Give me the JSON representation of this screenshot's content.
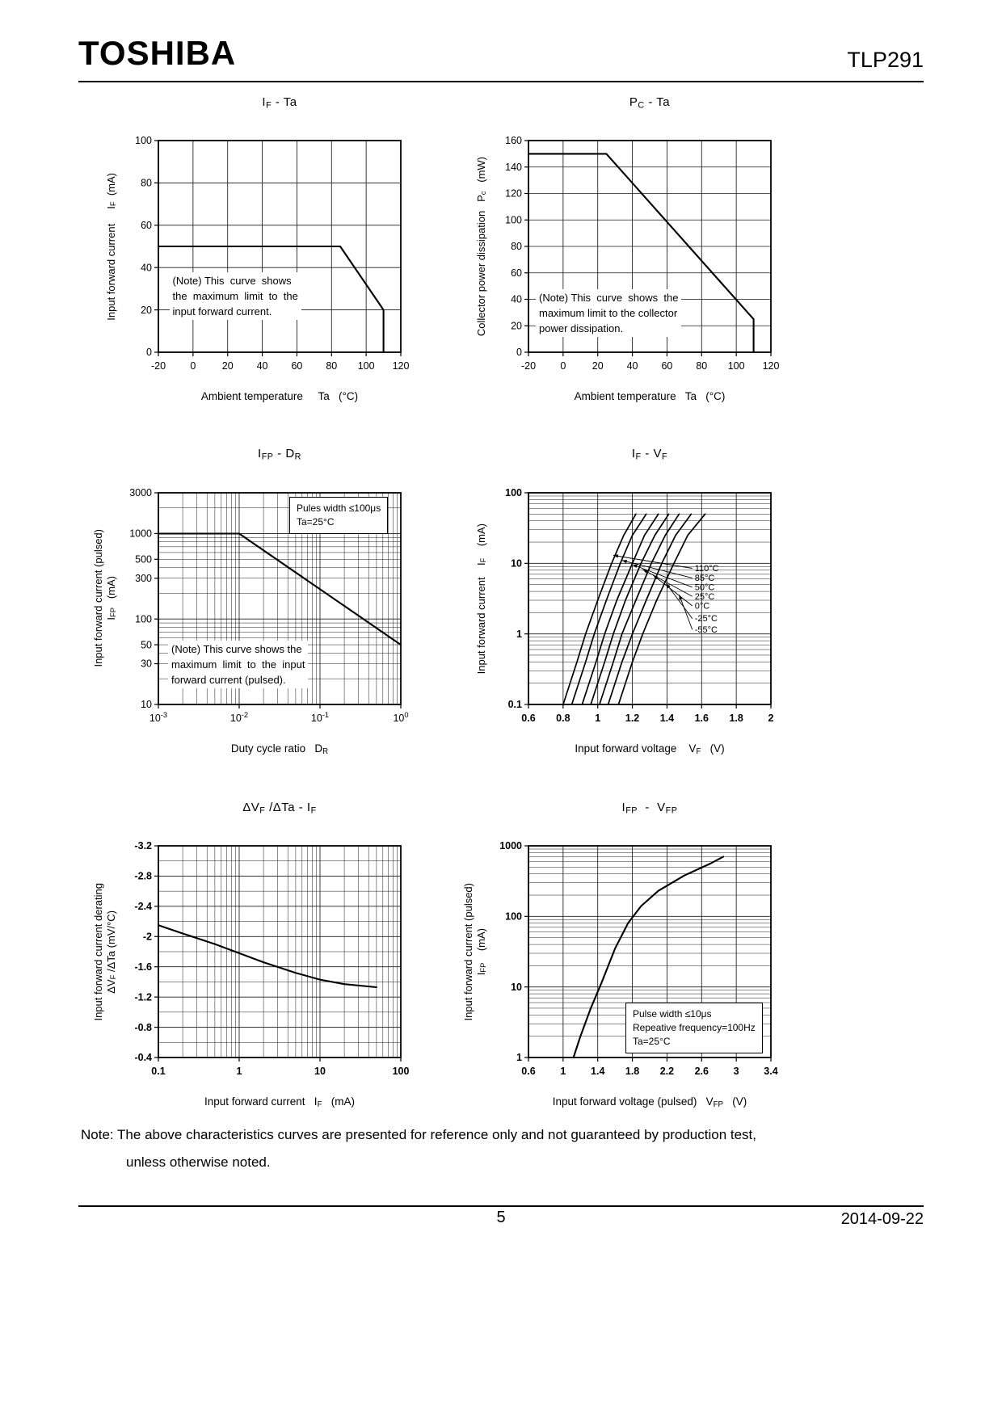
{
  "header": {
    "brand": "TOSHIBA",
    "part_number": "TLP291"
  },
  "note": {
    "line1": "Note: The above characteristics curves are presented for reference only and not guaranteed by production test,",
    "line2": "unless otherwise noted."
  },
  "footer": {
    "page_number": "5",
    "date": "2014-09-22"
  },
  "chart_data": [
    {
      "name": "if-ta",
      "type": "line",
      "title": [
        [
          "I"
        ],
        [
          "F",
          "sub"
        ],
        [
          " - Ta"
        ]
      ],
      "xlabel": [
        [
          "Ambient temperature     Ta   (°C)"
        ]
      ],
      "ylabel_lines": [
        [
          [
            "Input forward current     I"
          ],
          [
            "F",
            "sub"
          ],
          [
            "  (mA)"
          ]
        ]
      ],
      "x": {
        "type": "linear",
        "min": -20,
        "max": 120,
        "ticks": [
          -20,
          0,
          20,
          40,
          60,
          80,
          100,
          120
        ]
      },
      "y": {
        "type": "linear",
        "min": 0,
        "max": 100,
        "ticks": [
          0,
          20,
          40,
          60,
          80,
          100
        ]
      },
      "series": [
        {
          "points": [
            [
              -20,
              50
            ],
            [
              85,
              50
            ],
            [
              110,
              20
            ],
            [
              110,
              0
            ]
          ]
        }
      ],
      "notes": [
        {
          "lines": [
            "(Note) This  curve  shows",
            "the  maximum  limit  to  the",
            "input forward current."
          ],
          "fx": 0.045,
          "fy": 0.62,
          "border": false
        }
      ]
    },
    {
      "name": "pc-ta",
      "type": "line",
      "title": [
        [
          "P"
        ],
        [
          "C",
          "sub"
        ],
        [
          " - Ta"
        ]
      ],
      "xlabel": [
        [
          "Ambient temperature   Ta   (°C)"
        ]
      ],
      "ylabel_lines": [
        [
          [
            "Collector power dissipation   P"
          ],
          [
            "c",
            "sub"
          ],
          [
            "   (mW)"
          ]
        ]
      ],
      "x": {
        "type": "linear",
        "min": -20,
        "max": 120,
        "ticks": [
          -20,
          0,
          20,
          40,
          60,
          80,
          100,
          120
        ]
      },
      "y": {
        "type": "linear",
        "min": 0,
        "max": 160,
        "ticks": [
          0,
          20,
          40,
          60,
          80,
          100,
          120,
          140,
          160
        ]
      },
      "series": [
        {
          "points": [
            [
              -20,
              150
            ],
            [
              25,
              150
            ],
            [
              110,
              25
            ],
            [
              110,
              0
            ]
          ]
        }
      ],
      "notes": [
        {
          "lines": [
            "(Note) This  curve  shows  the",
            "maximum limit to the collector",
            "power dissipation."
          ],
          "fx": 0.03,
          "fy": 0.7,
          "border": false
        }
      ]
    },
    {
      "name": "ifp-dr",
      "type": "line",
      "title": [
        [
          "I"
        ],
        [
          "FP",
          "sub"
        ],
        [
          " - D"
        ],
        [
          "R",
          "sub"
        ]
      ],
      "xlabel": [
        [
          "Duty cycle ratio   D"
        ],
        [
          "R",
          "sub"
        ]
      ],
      "ylabel_lines": [
        [
          [
            "Input forward current (pulsed)"
          ]
        ],
        [
          [
            "I"
          ],
          [
            "FP",
            "sub"
          ],
          [
            "   (mA)"
          ]
        ]
      ],
      "x": {
        "type": "log",
        "min": 0.001,
        "max": 1,
        "ticks": [
          {
            "v": 0.001,
            "l": [
              [
                "10"
              ],
              [
                "-3",
                "sup"
              ]
            ]
          },
          {
            "v": 0.01,
            "l": [
              [
                "10"
              ],
              [
                "-2",
                "sup"
              ]
            ]
          },
          {
            "v": 0.1,
            "l": [
              [
                "10"
              ],
              [
                "-1",
                "sup"
              ]
            ]
          },
          {
            "v": 1,
            "l": [
              [
                "10"
              ],
              [
                "0",
                "sup"
              ]
            ]
          }
        ]
      },
      "y": {
        "type": "log",
        "min": 10,
        "max": 3000,
        "ticks": [
          10,
          30,
          50,
          100,
          300,
          500,
          1000,
          3000
        ]
      },
      "series": [
        {
          "points": [
            [
              0.001,
              1000
            ],
            [
              0.01,
              1000
            ],
            [
              1,
              50
            ]
          ]
        }
      ],
      "notes": [
        {
          "lines": [
            "Pules width ≤100μs",
            "Ta=25°C"
          ],
          "fx": 0.54,
          "fy": 0.02,
          "border": true
        },
        {
          "lines": [
            "(Note) This curve shows the",
            "maximum  limit  to  the  input",
            "forward current (pulsed)."
          ],
          "fx": 0.04,
          "fy": 0.7,
          "border": false
        }
      ]
    },
    {
      "name": "if-vf",
      "type": "line",
      "bold_ticks": true,
      "title": [
        [
          "I"
        ],
        [
          "F",
          "sub"
        ],
        [
          " - V"
        ],
        [
          "F",
          "sub"
        ]
      ],
      "xlabel": [
        [
          "Input forward voltage    V"
        ],
        [
          "F",
          "sub"
        ],
        [
          "   (V)"
        ]
      ],
      "ylabel_lines": [
        [
          [
            "Input forward current    I"
          ],
          [
            "F",
            "sub"
          ],
          [
            "    (mA)"
          ]
        ]
      ],
      "x": {
        "type": "linear",
        "min": 0.6,
        "max": 2,
        "ticks": [
          0.6,
          0.8,
          1,
          1.2,
          1.4,
          1.6,
          1.8,
          2
        ]
      },
      "y": {
        "type": "log",
        "min": 0.1,
        "max": 100,
        "ticks": [
          0.1,
          1,
          10,
          100
        ]
      },
      "series": [
        {
          "label": "110°C",
          "lw": 1.7,
          "points": [
            [
              0.8,
              0.1
            ],
            [
              0.88,
              0.4
            ],
            [
              0.93,
              1
            ],
            [
              1.0,
              3
            ],
            [
              1.08,
              10
            ],
            [
              1.15,
              25
            ],
            [
              1.22,
              50
            ]
          ]
        },
        {
          "label": "85°C",
          "lw": 1.7,
          "points": [
            [
              0.85,
              0.1
            ],
            [
              0.93,
              0.4
            ],
            [
              0.98,
              1
            ],
            [
              1.05,
              3
            ],
            [
              1.13,
              10
            ],
            [
              1.2,
              25
            ],
            [
              1.28,
              50
            ]
          ]
        },
        {
          "label": "50°C",
          "lw": 1.7,
          "points": [
            [
              0.91,
              0.1
            ],
            [
              0.99,
              0.4
            ],
            [
              1.04,
              1
            ],
            [
              1.11,
              3
            ],
            [
              1.2,
              10
            ],
            [
              1.27,
              25
            ],
            [
              1.35,
              50
            ]
          ]
        },
        {
          "label": "25°C",
          "lw": 1.7,
          "points": [
            [
              0.96,
              0.1
            ],
            [
              1.04,
              0.4
            ],
            [
              1.09,
              1
            ],
            [
              1.16,
              3
            ],
            [
              1.25,
              10
            ],
            [
              1.33,
              25
            ],
            [
              1.41,
              50
            ]
          ]
        },
        {
          "label": "0°C",
          "lw": 1.7,
          "points": [
            [
              1.01,
              0.1
            ],
            [
              1.09,
              0.4
            ],
            [
              1.14,
              1
            ],
            [
              1.22,
              3
            ],
            [
              1.31,
              10
            ],
            [
              1.39,
              25
            ],
            [
              1.47,
              50
            ]
          ]
        },
        {
          "label": "-25°C",
          "lw": 1.7,
          "points": [
            [
              1.06,
              0.1
            ],
            [
              1.14,
              0.4
            ],
            [
              1.2,
              1
            ],
            [
              1.28,
              3
            ],
            [
              1.37,
              10
            ],
            [
              1.45,
              25
            ],
            [
              1.54,
              50
            ]
          ]
        },
        {
          "label": "-55°C",
          "lw": 1.7,
          "points": [
            [
              1.12,
              0.1
            ],
            [
              1.2,
              0.4
            ],
            [
              1.26,
              1
            ],
            [
              1.34,
              3
            ],
            [
              1.44,
              10
            ],
            [
              1.52,
              25
            ],
            [
              1.62,
              50
            ]
          ]
        }
      ],
      "curve_labels": [
        {
          "t": "110°C",
          "x": 1.56,
          "y": 8.5,
          "ax": 1.09,
          "ay": 13
        },
        {
          "t": "85°C",
          "x": 1.56,
          "y": 6.2,
          "ax": 1.14,
          "ay": 11
        },
        {
          "t": "50°C",
          "x": 1.56,
          "y": 4.6,
          "ax": 1.2,
          "ay": 9.6
        },
        {
          "t": "25°C",
          "x": 1.56,
          "y": 3.4,
          "ax": 1.26,
          "ay": 8.2
        },
        {
          "t": "0°C",
          "x": 1.56,
          "y": 2.5,
          "ax": 1.32,
          "ay": 6.8
        },
        {
          "t": "-25°C",
          "x": 1.56,
          "y": 1.65,
          "ax": 1.395,
          "ay": 5.2
        },
        {
          "t": "-55°C",
          "x": 1.56,
          "y": 1.15,
          "ax": 1.47,
          "ay": 3.6
        }
      ]
    },
    {
      "name": "dvf-dta-if",
      "type": "line",
      "bold_ticks": true,
      "title": [
        [
          "ΔV"
        ],
        [
          "F",
          "sub"
        ],
        [
          " /ΔTa - I"
        ],
        [
          "F",
          "sub"
        ]
      ],
      "xlabel": [
        [
          "Input forward current   I"
        ],
        [
          "F",
          "sub"
        ],
        [
          "   (mA)"
        ]
      ],
      "ylabel_lines": [
        [
          [
            "Input forward current derating"
          ]
        ],
        [
          [
            "ΔV"
          ],
          [
            "F",
            "sub"
          ],
          [
            " /ΔTa (mV/°C)"
          ]
        ]
      ],
      "x": {
        "type": "log",
        "min": 0.1,
        "max": 100,
        "ticks": [
          0.1,
          1,
          10,
          100
        ]
      },
      "y": {
        "type": "linear",
        "min": -0.4,
        "max": -3.2,
        "minor": 0.2,
        "ticks": [
          -3.2,
          -2.8,
          -2.4,
          -2,
          -1.6,
          -1.2,
          -0.8,
          -0.4
        ]
      },
      "series": [
        {
          "points": [
            [
              0.1,
              -2.15
            ],
            [
              0.2,
              -2.04
            ],
            [
              0.5,
              -1.9
            ],
            [
              1,
              -1.78
            ],
            [
              2,
              -1.66
            ],
            [
              5,
              -1.52
            ],
            [
              10,
              -1.43
            ],
            [
              20,
              -1.37
            ],
            [
              50,
              -1.33
            ]
          ]
        }
      ]
    },
    {
      "name": "ifp-vfp",
      "type": "line",
      "bold_ticks": true,
      "title": [
        [
          "I"
        ],
        [
          "FP",
          "sub"
        ],
        [
          "  -  V"
        ],
        [
          "FP",
          "sub"
        ]
      ],
      "xlabel": [
        [
          "Input forward voltage (pulsed)   V"
        ],
        [
          "FP",
          "sub"
        ],
        [
          "   (V)"
        ]
      ],
      "ylabel_lines": [
        [
          [
            "Input forward current (pulsed)"
          ]
        ],
        [
          [
            "I"
          ],
          [
            "FP",
            "sub"
          ],
          [
            "    (mA)"
          ]
        ]
      ],
      "x": {
        "type": "linear",
        "min": 0.6,
        "max": 3.4,
        "ticks": [
          0.6,
          1,
          1.4,
          1.8,
          2.2,
          2.6,
          3,
          3.4
        ]
      },
      "y": {
        "type": "log",
        "min": 1,
        "max": 1000,
        "ticks": [
          1,
          10,
          100,
          1000
        ]
      },
      "series": [
        {
          "points": [
            [
              1.12,
              1
            ],
            [
              1.2,
              2
            ],
            [
              1.32,
              5
            ],
            [
              1.45,
              12
            ],
            [
              1.6,
              35
            ],
            [
              1.75,
              80
            ],
            [
              1.9,
              140
            ],
            [
              2.1,
              230
            ],
            [
              2.4,
              380
            ],
            [
              2.7,
              560
            ],
            [
              2.85,
              700
            ]
          ]
        }
      ],
      "notes": [
        {
          "lines": [
            "Pulse width ≤10μs",
            "Repeative frequency=100Hz",
            "Ta=25°C"
          ],
          "fx": 0.4,
          "fy": 0.74,
          "border": true
        }
      ]
    }
  ]
}
